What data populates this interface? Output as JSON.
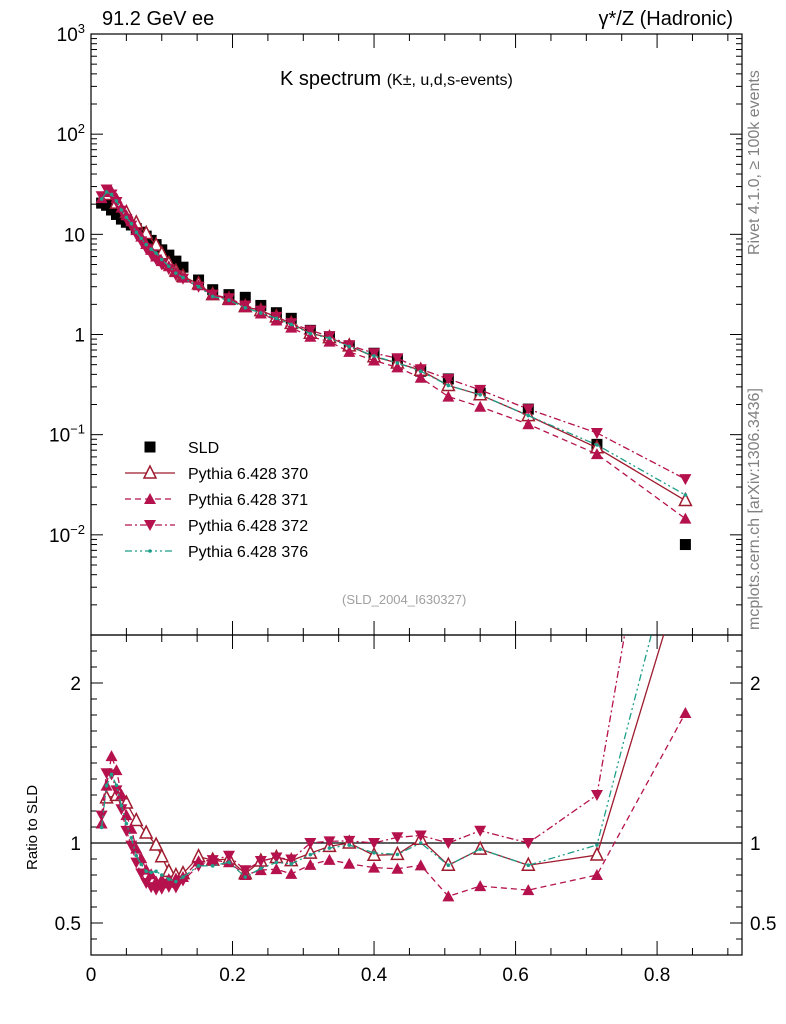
{
  "header": {
    "left": "91.2 GeV ee",
    "right": "γ*/Z (Hadronic)"
  },
  "side_labels": {
    "version": "Rivet 4.1.0, ≥ 100k events",
    "source": "mcplots.cern.ch [arXiv:1306.3436]"
  },
  "plot_title": {
    "main": "K spectrum",
    "sub": "(K±, u,d,s-events)"
  },
  "analysis_ref": "(SLD_2004_I630327)",
  "ratio_ylabel": "Ratio to SLD",
  "colors": {
    "data": "#000000",
    "p370": "#9e1b2e",
    "p371": "#b5124d",
    "p372": "#b5124d",
    "p376": "#1f9e89"
  },
  "chart_data": {
    "type": "scatter",
    "title": "K spectrum (K±, u,d,s-events)",
    "xlabel": "",
    "ylabel": "",
    "xlim": [
      0,
      0.92
    ],
    "ylim": [
      0.001,
      1000
    ],
    "yscale": "log",
    "xticks": [
      "0",
      "0.2",
      "0.4",
      "0.6",
      "0.8"
    ],
    "yticks": [
      "10^-2",
      "10^-1",
      "1",
      "10",
      "10^2",
      "10^3"
    ],
    "ratio": {
      "ylabel": "Ratio to SLD",
      "ylim": [
        0.3,
        2.3
      ],
      "yticks": [
        "0.5",
        "1",
        "2"
      ]
    },
    "x": [
      0.015,
      0.022,
      0.029,
      0.036,
      0.043,
      0.05,
      0.057,
      0.064,
      0.071,
      0.078,
      0.085,
      0.092,
      0.1,
      0.11,
      0.12,
      0.13,
      0.152,
      0.172,
      0.195,
      0.218,
      0.24,
      0.262,
      0.283,
      0.31,
      0.337,
      0.365,
      0.4,
      0.433,
      0.466,
      0.505,
      0.55,
      0.618,
      0.715,
      0.84
    ],
    "series": [
      {
        "name": "SLD",
        "marker": "square",
        "values": [
          20.5,
          19.5,
          17.5,
          15.8,
          14.2,
          13.2,
          12.4,
          11.4,
          10.5,
          9.6,
          8.7,
          7.9,
          7.0,
          6.2,
          5.4,
          4.7,
          3.5,
          2.8,
          2.5,
          2.35,
          1.95,
          1.65,
          1.45,
          1.1,
          0.95,
          0.77,
          0.65,
          0.56,
          0.43,
          0.36,
          0.26,
          0.18,
          0.08,
          0.008
        ]
      },
      {
        "name": "Pythia 6.428 370",
        "marker": "open-triangle-up",
        "line": "solid",
        "values": [
          null,
          25.0,
          null,
          20.5,
          null,
          16.5,
          null,
          13.0,
          null,
          10.2,
          null,
          7.8,
          6.4,
          5.1,
          4.3,
          3.8,
          3.2,
          2.5,
          2.25,
          1.9,
          1.73,
          1.5,
          1.29,
          1.03,
          0.93,
          0.77,
          0.6,
          0.52,
          0.44,
          0.31,
          0.25,
          0.155,
          0.074,
          0.022
        ]
      },
      {
        "name": "Pythia 6.428 371",
        "marker": "triangle-up",
        "line": "dashed",
        "values": [
          23.0,
          26.5,
          27.0,
          23.0,
          18.5,
          15.5,
          13.5,
          11.0,
          9.5,
          8.0,
          7.0,
          6.0,
          5.4,
          4.8,
          4.2,
          3.7,
          3.1,
          2.5,
          2.2,
          1.88,
          1.62,
          1.38,
          1.17,
          0.95,
          0.85,
          0.67,
          0.55,
          0.47,
          0.37,
          0.24,
          0.19,
          0.127,
          0.064,
          0.0145
        ]
      },
      {
        "name": "Pythia 6.428 372",
        "marker": "triangle-down",
        "line": "dashdot",
        "values": [
          24.0,
          28.0,
          25.0,
          21.0,
          17.2,
          14.2,
          12.2,
          10.0,
          8.5,
          7.2,
          6.3,
          5.6,
          5.0,
          4.5,
          3.9,
          3.6,
          3.0,
          2.5,
          2.3,
          1.95,
          1.73,
          1.5,
          1.3,
          1.1,
          0.96,
          0.78,
          0.65,
          0.58,
          0.45,
          0.36,
          0.28,
          0.18,
          0.104,
          0.036
        ]
      },
      {
        "name": "Pythia 6.428 376",
        "marker": "dot",
        "line": "dashdotdot",
        "values": [
          22.5,
          26.5,
          25.0,
          21.5,
          17.5,
          14.8,
          12.8,
          10.5,
          9.1,
          7.9,
          7.1,
          6.5,
          5.6,
          4.8,
          4.1,
          3.7,
          3.0,
          2.4,
          2.2,
          1.85,
          1.64,
          1.45,
          1.26,
          1.02,
          0.92,
          0.76,
          0.61,
          0.52,
          0.43,
          0.31,
          0.25,
          0.155,
          0.079,
          0.025
        ]
      }
    ],
    "legend": [
      "SLD",
      "Pythia 6.428 370",
      "Pythia 6.428 371",
      "Pythia 6.428 372",
      "Pythia 6.428 376"
    ],
    "legend_position": "lower-left"
  }
}
